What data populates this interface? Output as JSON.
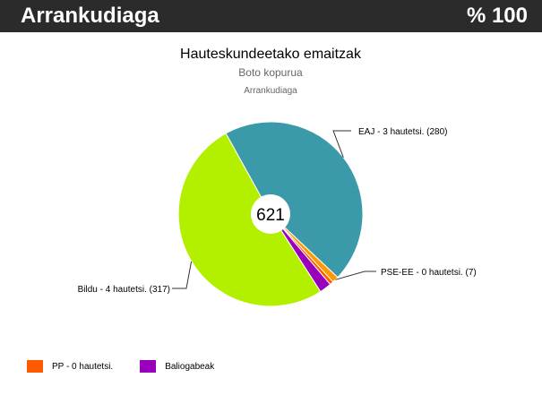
{
  "header": {
    "place": "Arrankudiaga",
    "percent": "% 100"
  },
  "chart_data": {
    "type": "pie",
    "title": "Hauteskundeetako emaitzak",
    "subtitle": "Boto kopurua",
    "caption": "Arrankudiaga",
    "center_label": "621",
    "slices": [
      {
        "label": "EAJ - 3 hautetsi. (280)",
        "value": 280,
        "color": "#3a9aaa"
      },
      {
        "label": "PSE-EE - 0 hautetsi. (7)",
        "value": 7,
        "color": "#ff9900"
      },
      {
        "label": "PP - 0 hautetsi.",
        "value": 4,
        "color": "#ff5a00"
      },
      {
        "label": "Baliogabeak",
        "value": 13,
        "color": "#9900bb"
      },
      {
        "label": "Bildu - 4 hautetsi. (317)",
        "value": 317,
        "color": "#b3f000"
      }
    ],
    "legend": [
      {
        "label": "PP - 0 hautetsi.",
        "color": "#ff5a00"
      },
      {
        "label": "Baliogabeak",
        "color": "#9900bb"
      }
    ]
  }
}
